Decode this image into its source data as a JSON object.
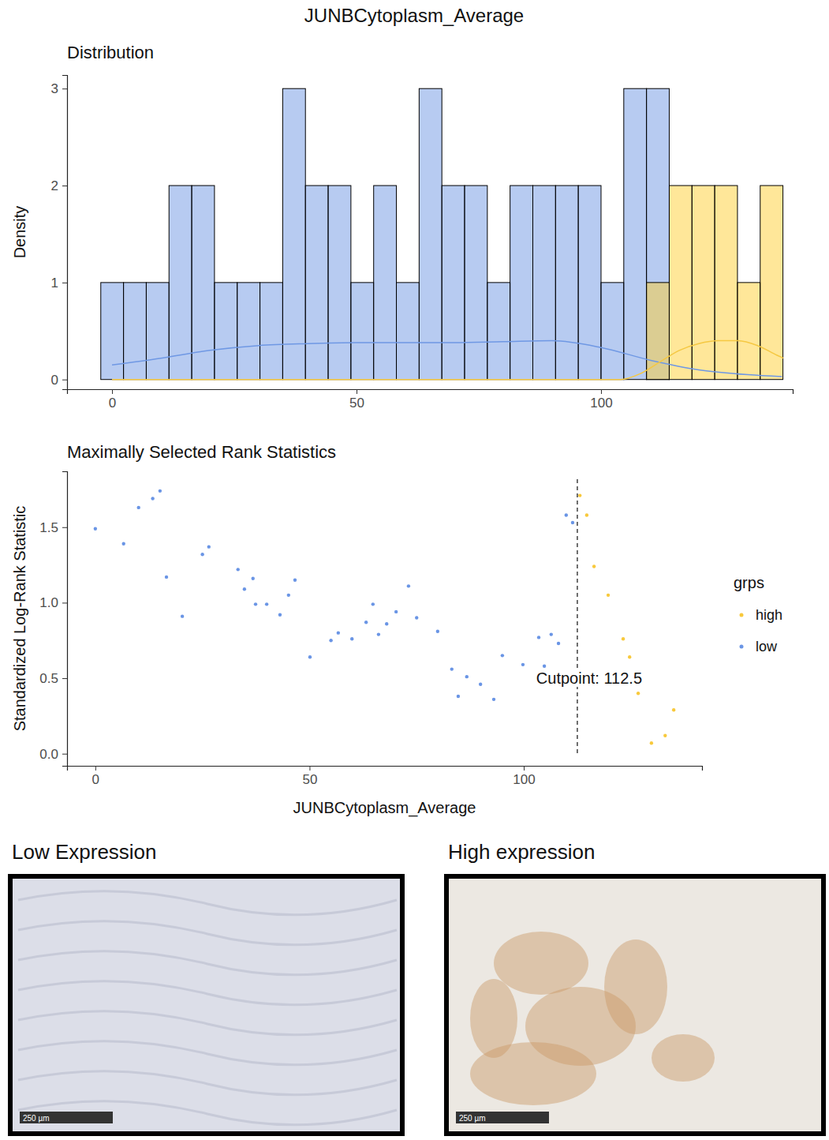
{
  "title": "JUNBCytoplasm_Average",
  "chart_data": [
    {
      "type": "histogram",
      "title": "Distribution",
      "y_label": "Density",
      "bins": [
        -2.3,
        2.35,
        7.0,
        11.65,
        16.3,
        20.95,
        25.6,
        30.25,
        34.9,
        39.55,
        44.2,
        48.85,
        53.5,
        58.15,
        62.8,
        67.45,
        72.1,
        76.75,
        81.4,
        86.05,
        90.7,
        95.35,
        100.0,
        104.65,
        109.3,
        113.95,
        118.6,
        123.25,
        127.9,
        132.55,
        137.2
      ],
      "series": [
        {
          "color": "#6f98e4",
          "values": [
            1,
            1,
            1,
            2,
            2,
            1,
            1,
            1,
            3,
            2,
            2,
            1,
            2,
            1,
            3,
            2,
            2,
            1,
            2,
            2,
            2,
            2,
            1,
            3,
            3,
            0,
            0,
            0,
            0,
            0
          ]
        },
        {
          "color": "#ffcf33",
          "values": [
            0,
            0,
            0,
            0,
            0,
            0,
            0,
            0,
            0,
            0,
            0,
            0,
            0,
            0,
            0,
            0,
            0,
            0,
            0,
            0,
            0,
            0,
            0,
            0,
            1,
            2,
            2,
            2,
            1,
            2
          ]
        }
      ],
      "density": [
        {
          "color": "#6f98e4",
          "x": [
            0,
            10,
            20,
            30,
            40,
            50,
            60,
            70,
            80,
            90,
            100,
            110,
            120,
            130,
            137
          ],
          "values": [
            0.15,
            0.22,
            0.3,
            0.35,
            0.37,
            0.38,
            0.38,
            0.38,
            0.39,
            0.4,
            0.33,
            0.2,
            0.1,
            0.05,
            0.03
          ]
        },
        {
          "color": "#f5c842",
          "x": [
            0,
            104,
            108,
            112,
            116,
            120,
            124,
            128,
            132,
            136,
            137.3
          ],
          "values": [
            0,
            0,
            0.06,
            0.18,
            0.3,
            0.37,
            0.4,
            0.4,
            0.35,
            0.25,
            0.22
          ]
        }
      ],
      "xlim": [
        -9.2,
        139.2
      ],
      "ylim": [
        -0.1,
        3.14
      ],
      "xticks": [
        0,
        50,
        100
      ],
      "yticks": [
        0,
        1,
        2,
        3
      ]
    },
    {
      "type": "scatter",
      "title": "Maximally Selected Rank Statistics",
      "x_label": "JUNBCytoplasm_Average",
      "y_label": "Standardized Log-Rank Statistic",
      "series": [
        {
          "name": "high",
          "color": "#f8c93c",
          "x": [
            113.1,
            114.7,
            116.4,
            119.7,
            123.2,
            124.7,
            126.7,
            129.8,
            133.0,
            135.0
          ],
          "values": [
            1.71,
            1.58,
            1.24,
            1.05,
            0.76,
            0.64,
            0.4,
            0.07,
            0.12,
            0.29
          ]
        },
        {
          "name": "low",
          "color": "#6a95e5",
          "x": [
            0,
            6.6,
            10.1,
            13.4,
            15.1,
            16.6,
            20.3,
            25.0,
            26.5,
            33.3,
            34.8,
            36.8,
            37.4,
            40.0,
            43.1,
            45.1,
            46.6,
            50.1,
            55.0,
            56.7,
            59.9,
            63.2,
            64.8,
            66.1,
            68.0,
            70.2,
            73.1,
            75.0,
            79.9,
            83.2,
            84.7,
            86.7,
            89.9,
            93.0,
            95.0,
            99.8,
            103.5,
            104.8,
            106.4,
            108.1,
            109.9,
            111.4
          ],
          "values": [
            1.49,
            1.39,
            1.63,
            1.69,
            1.74,
            1.17,
            0.91,
            1.32,
            1.37,
            1.22,
            1.09,
            1.16,
            0.99,
            0.99,
            0.92,
            1.05,
            1.15,
            0.64,
            0.75,
            0.8,
            0.76,
            0.87,
            0.99,
            0.79,
            0.86,
            0.94,
            1.11,
            0.9,
            0.81,
            0.56,
            0.38,
            0.51,
            0.46,
            0.36,
            0.65,
            0.59,
            0.77,
            0.58,
            0.79,
            0.73,
            1.58,
            1.53
          ]
        }
      ],
      "legend_title": "grps",
      "legend": "right",
      "cutpoint": 112.5,
      "annotation": "Cutpoint: 112.5",
      "xlim": [
        -6.6,
        141.6
      ],
      "ylim": [
        -0.08,
        1.87
      ],
      "xticks": [
        0,
        50,
        100
      ],
      "yticks": [
        {
          "value": 0,
          "label": "0.0"
        },
        {
          "value": 0.5,
          "label": "0.5"
        },
        {
          "value": 1,
          "label": "1.0"
        },
        {
          "value": 1.5,
          "label": "1.5"
        }
      ]
    }
  ],
  "images": [
    {
      "label": "Low Expression",
      "scale_bar": "250 µm"
    },
    {
      "label": "High expression",
      "scale_bar": "250 µm"
    }
  ]
}
